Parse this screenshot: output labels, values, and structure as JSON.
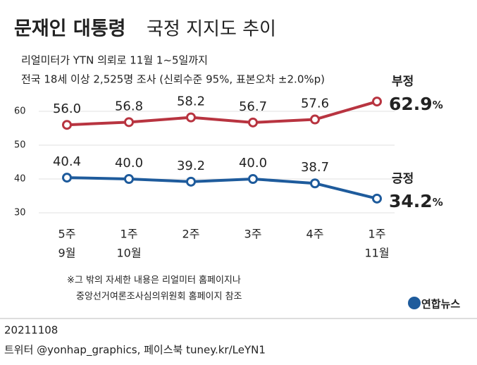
{
  "chart_data": {
    "type": "line",
    "title": [
      "문재인 대통령",
      "국정 지지도 추이"
    ],
    "subtitle": [
      "리얼미터가 YTN 의뢰로 11월 1~5일까지",
      "전국 18세 이상 2,525명 조사 (신뢰수준 95%, 표본오차 ±2.0%p)"
    ],
    "categories": [
      [
        "5주",
        "9월"
      ],
      [
        "1주",
        "10월"
      ],
      [
        "2주"
      ],
      [
        "3주"
      ],
      [
        "4주"
      ],
      [
        "1주",
        "11월"
      ]
    ],
    "series": [
      {
        "name": "부정",
        "color": "#b83440",
        "values": [
          56.0,
          56.8,
          58.2,
          56.7,
          57.6,
          62.9
        ],
        "value_labels": [
          "56.0",
          "56.8",
          "58.2",
          "56.7",
          "57.6",
          "62.9%"
        ]
      },
      {
        "name": "긍정",
        "color": "#1e5b9c",
        "values": [
          40.4,
          40.0,
          39.2,
          40.0,
          38.7,
          34.2
        ],
        "value_labels": [
          "40.4",
          "40.0",
          "39.2",
          "40.0",
          "38.7",
          "34.2%"
        ]
      }
    ],
    "ylim": [
      30,
      60
    ],
    "yticks": [
      30,
      40,
      50,
      60
    ],
    "grid": true,
    "footnote": [
      "※그 밖의 자세한 내용은 리얼미터 홈페이지나",
      "중앙선거여론조사심의위원회 홈페이지 참조"
    ],
    "source": "연합뉴스",
    "date": "20211108",
    "credit": "트위터 @yonhap_graphics, 페이스북 tuney.kr/LeYN1"
  }
}
